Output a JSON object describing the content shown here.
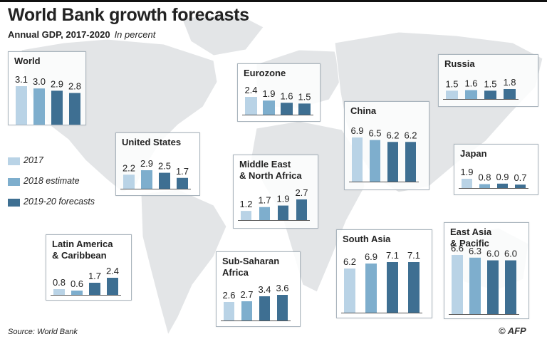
{
  "title": "World Bank growth forecasts",
  "subtitle": "Annual GDP, 2017-2020",
  "unit": "In percent",
  "source": "Source: World Bank",
  "logo": "© AFP",
  "legend": [
    {
      "label": "2017",
      "color": "#b9d3e6"
    },
    {
      "label": "2018 estimate",
      "color": "#7eaecd"
    },
    {
      "label": "2019-20 forecasts",
      "color": "#3e6f92"
    }
  ],
  "chart_data": [
    {
      "type": "bar",
      "title": "World",
      "categories": [
        "17",
        "18",
        "19",
        "20"
      ],
      "values": [
        3.1,
        3.0,
        2.9,
        2.8
      ]
    },
    {
      "type": "bar",
      "title": "Eurozone",
      "categories": [
        "2017",
        "2018",
        "2019",
        "2020"
      ],
      "values": [
        2.4,
        1.9,
        1.6,
        1.5
      ]
    },
    {
      "type": "bar",
      "title": "Russia",
      "categories": [
        "2017",
        "2018",
        "2019",
        "2020"
      ],
      "values": [
        1.5,
        1.6,
        1.5,
        1.8
      ]
    },
    {
      "type": "bar",
      "title": "China",
      "categories": [
        "2017",
        "2018",
        "2019",
        "2020"
      ],
      "values": [
        6.9,
        6.5,
        6.2,
        6.2
      ]
    },
    {
      "type": "bar",
      "title": "United States",
      "categories": [
        "2017",
        "2018",
        "2019",
        "2020"
      ],
      "values": [
        2.2,
        2.9,
        2.5,
        1.7
      ]
    },
    {
      "type": "bar",
      "title": "Middle East\n& North Africa",
      "categories": [
        "2017",
        "2018",
        "2019",
        "2020"
      ],
      "values": [
        1.2,
        1.7,
        1.9,
        2.7
      ]
    },
    {
      "type": "bar",
      "title": "Japan",
      "categories": [
        "2017",
        "2018",
        "2019",
        "2020"
      ],
      "values": [
        1.9,
        0.8,
        0.9,
        0.7
      ]
    },
    {
      "type": "bar",
      "title": "Latin America\n& Caribbean",
      "categories": [
        "2017",
        "2018",
        "2019",
        "2020"
      ],
      "values": [
        0.8,
        0.6,
        1.7,
        2.4
      ]
    },
    {
      "type": "bar",
      "title": "Sub-Saharan\nAfrica",
      "categories": [
        "2017",
        "2018",
        "2019",
        "2020"
      ],
      "values": [
        2.6,
        2.7,
        3.4,
        3.6
      ]
    },
    {
      "type": "bar",
      "title": "South Asia",
      "categories": [
        "2017",
        "2018",
        "2019",
        "2020"
      ],
      "values": [
        6.2,
        6.9,
        7.1,
        7.1
      ]
    },
    {
      "type": "bar",
      "title": "East Asia\n& Pacific",
      "categories": [
        "2017",
        "2018",
        "2019",
        "2020"
      ],
      "values": [
        6.6,
        6.3,
        6.0,
        6.0
      ]
    }
  ]
}
